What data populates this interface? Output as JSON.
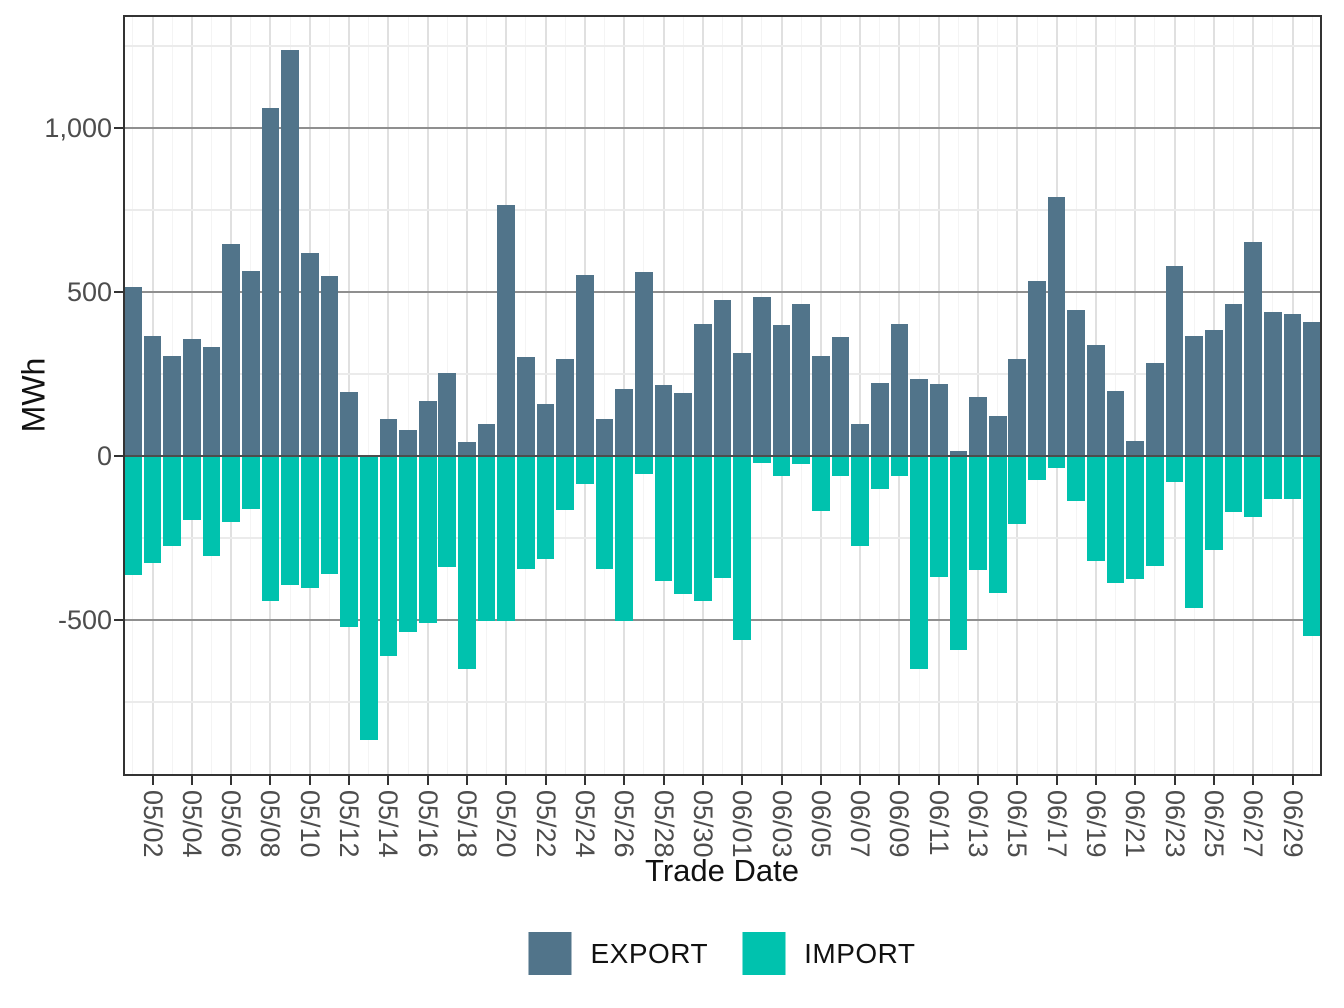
{
  "axes": {
    "y_title": "MWh",
    "x_title": "Trade Date"
  },
  "legend": {
    "items": [
      {
        "label": "EXPORT",
        "color": "#51748A"
      },
      {
        "label": "IMPORT",
        "color": "#00C2AE"
      }
    ]
  },
  "colors": {
    "export": "#51748A",
    "import": "#00C2AE",
    "panel_border": "#333333",
    "grid_major_h": "#8f8f8f",
    "grid_minor_h": "#ebebeb",
    "grid_major_v": "#e0e0e0",
    "grid_minor_v": "#f4f4f4",
    "zero_line": "#4d4d4d",
    "tick_mark": "#333333",
    "tick_label": "#4d4d4d",
    "axis_title": "#111111"
  },
  "chart_data": {
    "type": "bar",
    "diverging": true,
    "title": "",
    "xlabel": "Trade Date",
    "ylabel": "MWh",
    "ylim": [
      -975,
      1345
    ],
    "grid": true,
    "legend_position": "bottom",
    "categories": [
      "05/01",
      "05/02",
      "05/03",
      "05/04",
      "05/05",
      "05/06",
      "05/07",
      "05/08",
      "05/09",
      "05/10",
      "05/11",
      "05/12",
      "05/13",
      "05/14",
      "05/15",
      "05/16",
      "05/17",
      "05/18",
      "05/19",
      "05/20",
      "05/21",
      "05/22",
      "05/23",
      "05/24",
      "05/25",
      "05/26",
      "05/27",
      "05/28",
      "05/29",
      "05/30",
      "05/31",
      "06/01",
      "06/02",
      "06/03",
      "06/04",
      "06/05",
      "06/06",
      "06/07",
      "06/08",
      "06/09",
      "06/10",
      "06/11",
      "06/12",
      "06/13",
      "06/14",
      "06/15",
      "06/16",
      "06/17",
      "06/18",
      "06/19",
      "06/20",
      "06/21",
      "06/22",
      "06/23",
      "06/24",
      "06/25",
      "06/26",
      "06/27",
      "06/28",
      "06/29",
      "06/30"
    ],
    "series": [
      {
        "name": "EXPORT",
        "color": "#51748A",
        "values": [
          515,
          367,
          305,
          356,
          334,
          646,
          566,
          1062,
          1238,
          618,
          548,
          197,
          0,
          112,
          79,
          169,
          255,
          44,
          99,
          767,
          303,
          159,
          295,
          552,
          112,
          206,
          562,
          216,
          192,
          403,
          476,
          314,
          486,
          401,
          465,
          305,
          363,
          99,
          223,
          402,
          235,
          219,
          17,
          180,
          122,
          295,
          533,
          790,
          447,
          339,
          199,
          46,
          284,
          581,
          367,
          385,
          464,
          653,
          441,
          432,
          408
        ]
      },
      {
        "name": "IMPORT",
        "color": "#00C2AE",
        "values": [
          -363,
          -325,
          -275,
          -195,
          -303,
          -202,
          -161,
          -440,
          -392,
          -403,
          -360,
          -522,
          -865,
          -608,
          -536,
          -509,
          -339,
          -648,
          -504,
          -501,
          -343,
          -314,
          -163,
          -84,
          -343,
          -504,
          -55,
          -382,
          -421,
          -440,
          -370,
          -559,
          -20,
          -61,
          -25,
          -166,
          -59,
          -274,
          -100,
          -60,
          -648,
          -368,
          -590,
          -348,
          -418,
          -207,
          -72,
          -36,
          -137,
          -321,
          -386,
          -375,
          -336,
          -79,
          -464,
          -285,
          -170,
          -184,
          -130,
          -130,
          -548
        ]
      }
    ],
    "y_major_ticks": [
      {
        "value": 1000,
        "label": "1,000"
      },
      {
        "value": 500,
        "label": "500"
      },
      {
        "value": 0,
        "label": "0"
      },
      {
        "value": -500,
        "label": "-500"
      }
    ],
    "y_minor_ticks": [
      1250,
      750,
      250,
      -250,
      -750
    ],
    "x_tick_labels": [
      "05/02",
      "05/04",
      "05/06",
      "05/08",
      "05/10",
      "05/12",
      "05/14",
      "05/16",
      "05/18",
      "05/20",
      "05/22",
      "05/24",
      "05/26",
      "05/28",
      "05/30",
      "06/01",
      "06/03",
      "06/05",
      "06/07",
      "06/09",
      "06/11",
      "06/13",
      "06/15",
      "06/17",
      "06/19",
      "06/21",
      "06/23",
      "06/25",
      "06/27",
      "06/29"
    ],
    "x_tick_every": 2,
    "x_first_tick_index": 1
  }
}
